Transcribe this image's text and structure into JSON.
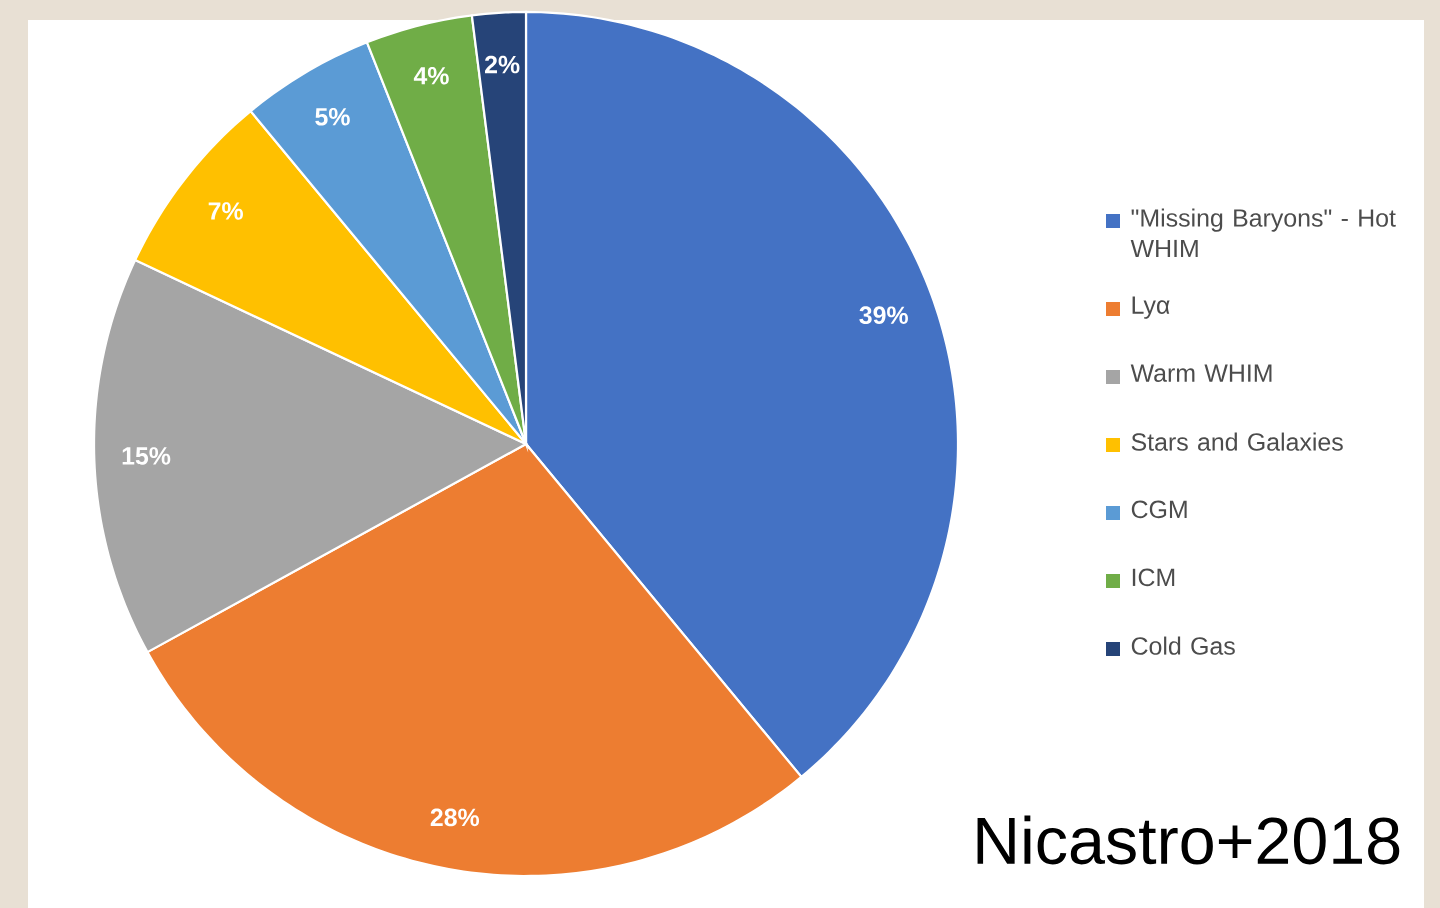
{
  "chart_data": {
    "type": "pie",
    "categories": [
      "\"Missing Baryons\" - Hot WHIM",
      "Lyα",
      "Warm WHIM",
      "Stars and Galaxies",
      "CGM",
      "ICM",
      "Cold Gas"
    ],
    "values": [
      39,
      28,
      15,
      7,
      5,
      4,
      2
    ],
    "value_labels": [
      "39%",
      "28%",
      "15%",
      "7%",
      "5%",
      "4%",
      "2%"
    ],
    "colors": [
      "#4472c4",
      "#ed7d31",
      "#a5a5a5",
      "#ffc000",
      "#5b9bd5",
      "#70ad47",
      "#264478"
    ],
    "legend": "right",
    "annotations": [
      "Nicastro+2018"
    ]
  }
}
